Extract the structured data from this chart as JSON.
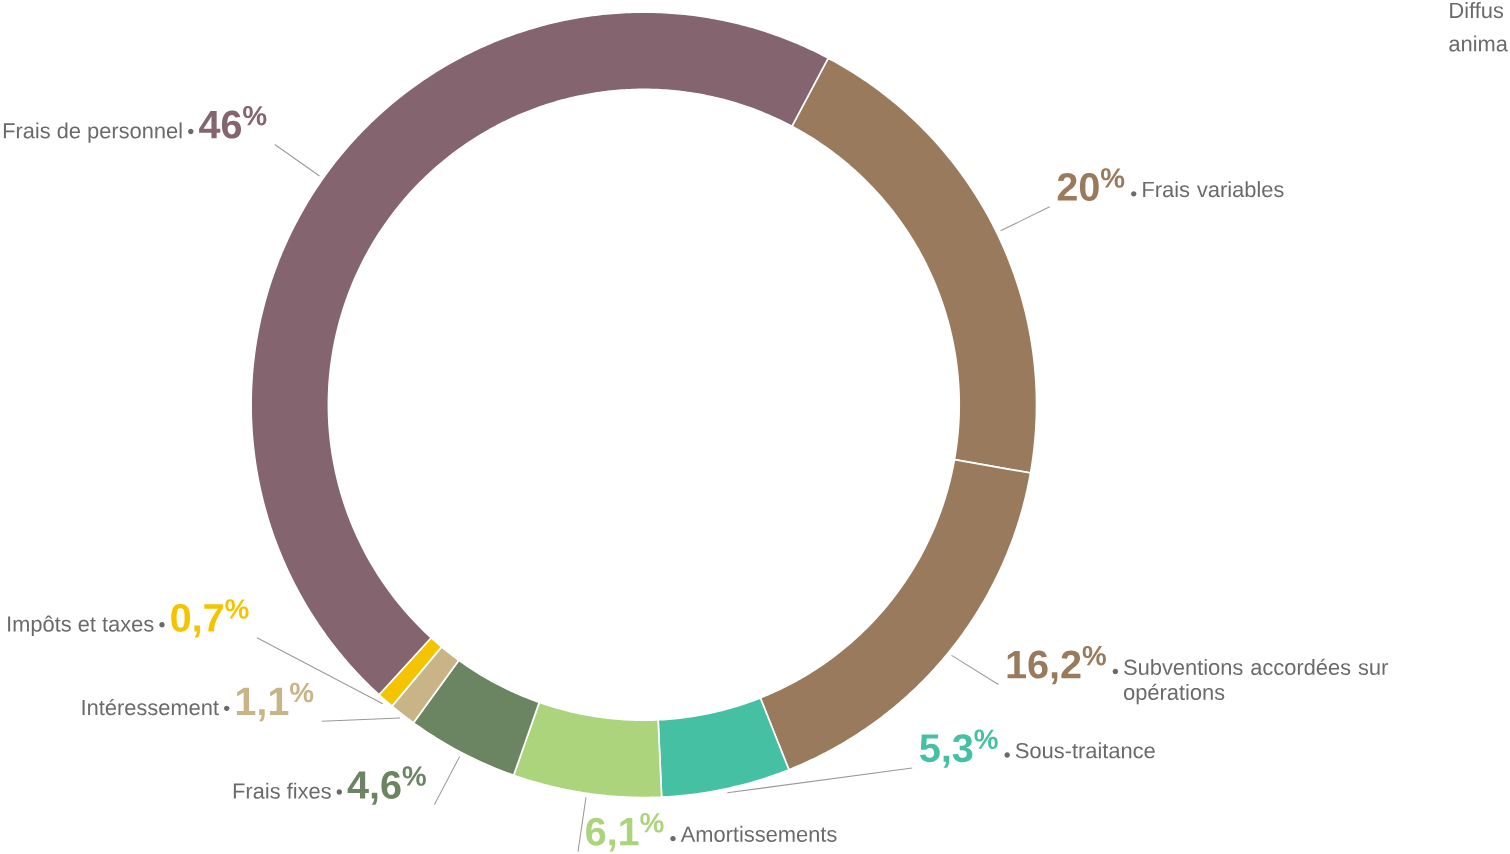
{
  "chart_data": {
    "type": "donut",
    "categories": [
      "Frais variables",
      "Subventions accordées sur opérations",
      "Sous-traitance",
      "Amortissements",
      "Frais fixes",
      "Intéressement",
      "Impôts et taxes",
      "Frais de personnel"
    ],
    "values": [
      20,
      16.2,
      5.3,
      6.1,
      4.6,
      1.1,
      0.7,
      46
    ],
    "value_labels": [
      "20$^{%}$",
      "16,2$^{%}$",
      "5,3$^{%}$",
      "6,1$^{%}$",
      "4,6$^{%}$",
      "1,1$^{%}$",
      "0,7$^{%}$",
      "46$^{%}$"
    ],
    "colors": [
      "#9a7a5c",
      "#9a7a5c",
      "#45c0a3",
      "#acd47c",
      "#6b8462",
      "#c9b488",
      "#f5c400",
      "#83646f"
    ],
    "annotations": [
      "Diffus",
      "anima"
    ]
  }
}
